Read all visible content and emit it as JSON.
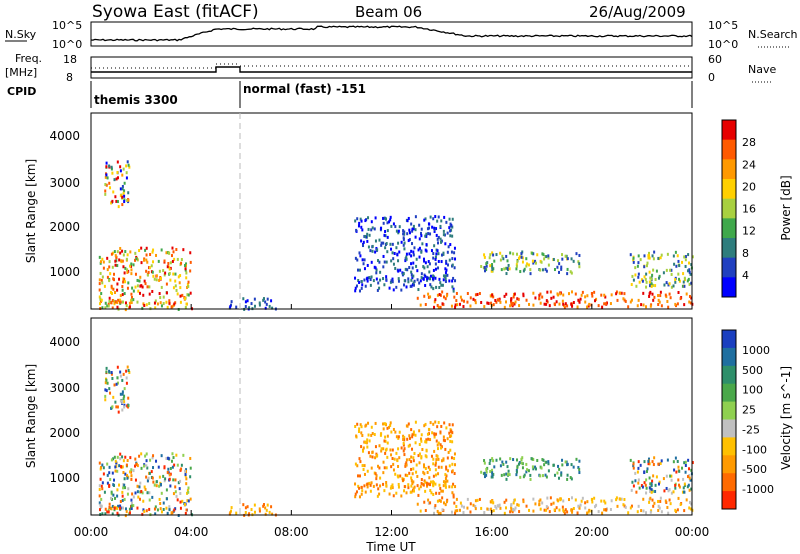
{
  "header": {
    "station": "Syowa East (fitACF)",
    "beam": "Beam 06",
    "date": "26/Aug/2009"
  },
  "side_labels": {
    "nsky": "N.Sky",
    "freq": "Freq.",
    "freq_unit": "[MHz]",
    "cpid": "CPID",
    "nsearch": "N.Search",
    "nave": "Nave"
  },
  "noise_panel": {
    "ytick_top": "10^5",
    "ytick_bottom": "10^0",
    "ytick_right_top": "10^5",
    "ytick_right_bottom": "10^0"
  },
  "freq_panel": {
    "left_ticks": [
      "18",
      "8"
    ],
    "right_ticks": [
      "60",
      "0"
    ]
  },
  "cpid_panel": {
    "segments": [
      {
        "start_hour": 0,
        "end_hour": 6,
        "label": "themis 3300"
      },
      {
        "start_hour": 6,
        "end_hour": 24,
        "label": "normal (fast) -151"
      }
    ]
  },
  "x_axis": {
    "title": "Time UT",
    "range_hours": [
      0,
      24
    ],
    "ticks": [
      "00:00",
      "04:00",
      "08:00",
      "12:00",
      "16:00",
      "20:00",
      "00:00"
    ]
  },
  "power_panel": {
    "ylabel": "Slant Range [km]",
    "yticks": [
      "4000",
      "3000",
      "2000",
      "1000"
    ],
    "cbar_title": "Power [dB]",
    "cbar_ticks": [
      "28",
      "24",
      "20",
      "16",
      "12",
      "8",
      "4"
    ],
    "cbar_colors": [
      "#e60000",
      "#ff5a00",
      "#ff9900",
      "#ffd000",
      "#a8d040",
      "#3fa84b",
      "#2e7d7d",
      "#2040c0",
      "#0000ff"
    ]
  },
  "velocity_panel": {
    "ylabel": "Slant Range [km]",
    "yticks": [
      "4000",
      "3000",
      "2000",
      "1000"
    ],
    "cbar_title": "Velocity [m s^-1]",
    "cbar_ticks": [
      "1000",
      "500",
      "100",
      "25",
      "-25",
      "-100",
      "-500",
      "-1000"
    ],
    "cbar_colors": [
      "#1a3fc0",
      "#1f6fa0",
      "#2e8f6a",
      "#4aa84a",
      "#8fd050",
      "#c0c0c0",
      "#ffc000",
      "#ff9a00",
      "#ff6a00",
      "#ff2800"
    ]
  },
  "chart_data": {
    "type": "heatmap",
    "x_range_hours": [
      0,
      24
    ],
    "y_range_km": [
      180,
      4600
    ],
    "mode_change_hour": 6,
    "scatter_regions": [
      {
        "t0": 0.3,
        "t1": 4.0,
        "r0": 200,
        "r1": 1600,
        "power": "mixed-high",
        "velocity": "mixed"
      },
      {
        "t0": 0.5,
        "t1": 1.5,
        "r0": 2500,
        "r1": 3600,
        "power": "mixed",
        "velocity": "mixed"
      },
      {
        "t0": 5.5,
        "t1": 7.5,
        "r0": 200,
        "r1": 450,
        "power": "low",
        "velocity": "low"
      },
      {
        "t0": 10.5,
        "t1": 14.5,
        "r0": 600,
        "r1": 2300,
        "power": "low",
        "velocity": "low"
      },
      {
        "t0": 13.0,
        "t1": 24.0,
        "r0": 250,
        "r1": 600,
        "power": "high",
        "velocity": "negative"
      },
      {
        "t0": 15.5,
        "t1": 19.5,
        "r0": 1000,
        "r1": 1500,
        "power": "medium",
        "velocity": "positive"
      },
      {
        "t0": 21.5,
        "t1": 24.0,
        "r0": 700,
        "r1": 1500,
        "power": "medium",
        "velocity": "mixed"
      }
    ]
  }
}
